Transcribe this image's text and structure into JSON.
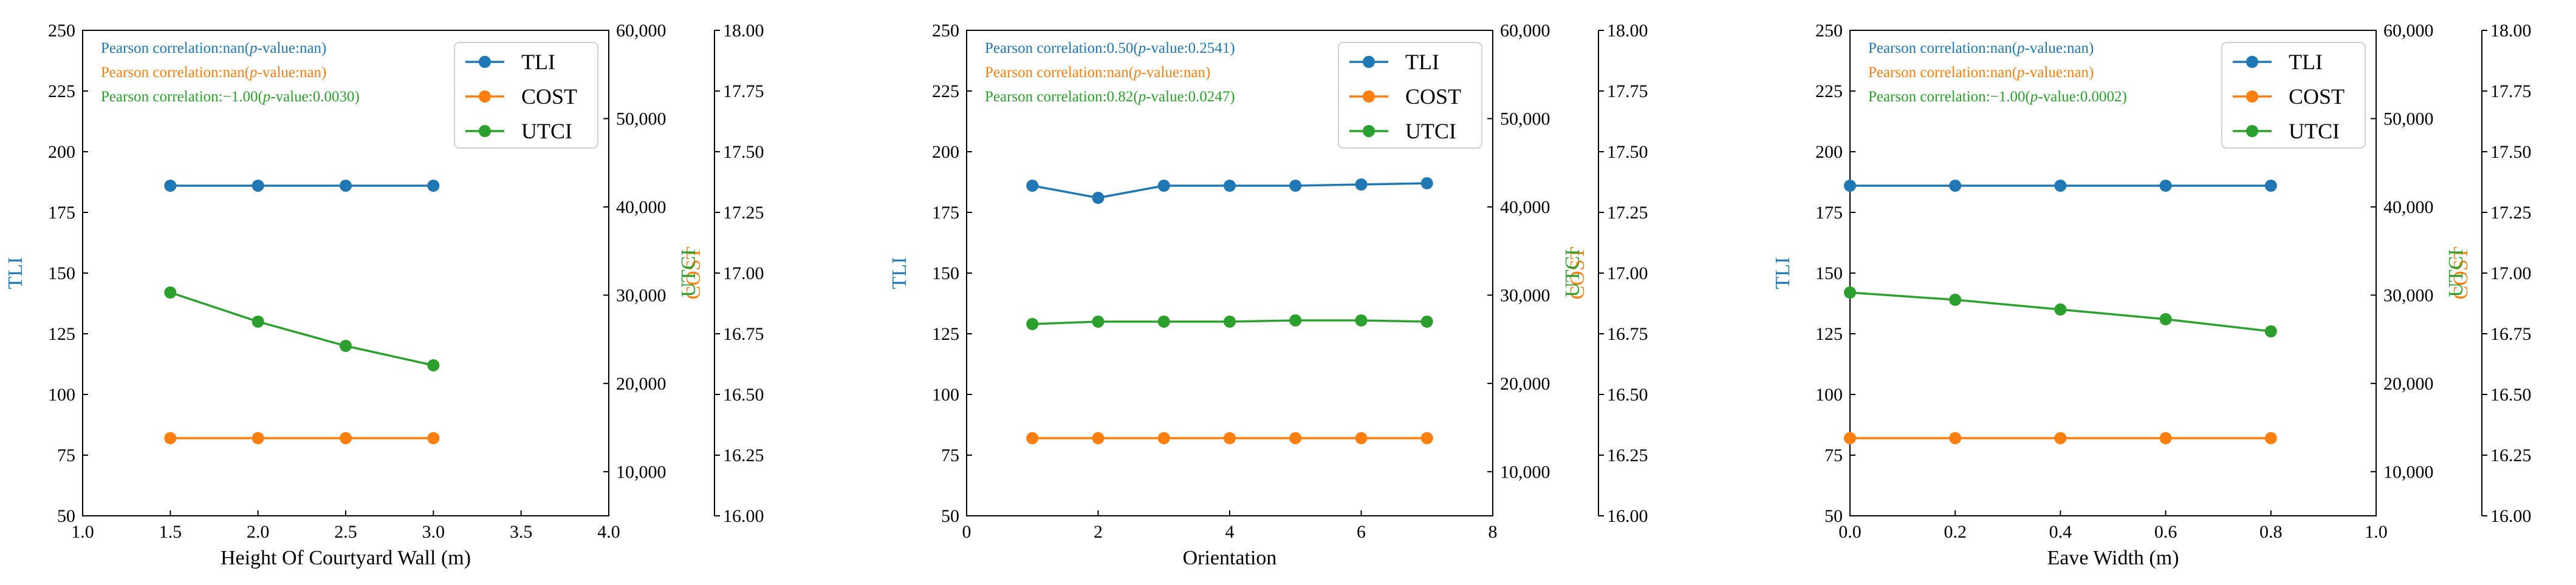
{
  "colors": {
    "tli": "#1f77b4",
    "cost": "#ff7f0e",
    "utci": "#2ca02c",
    "axis": "#000000"
  },
  "legend_labels": [
    "TLI",
    "COST",
    "UTCI"
  ],
  "chart_data": [
    {
      "type": "line",
      "xlabel": "Height Of Courtyard Wall (m)",
      "xlim": [
        1.0,
        4.0
      ],
      "xticks": [
        1.0,
        1.5,
        2.0,
        2.5,
        3.0,
        3.5,
        4.0
      ],
      "xtick_labels": [
        "1.0",
        "1.5",
        "2.0",
        "2.5",
        "3.0",
        "3.5",
        "4.0"
      ],
      "ylabel_left": "TLI",
      "ylim_left": [
        50,
        250
      ],
      "yticks_left": [
        "50",
        "75",
        "100",
        "125",
        "150",
        "175",
        "200",
        "225",
        "250"
      ],
      "ylabel_cost": "COST",
      "ylim_cost": [
        5000,
        60000
      ],
      "yticks_cost": [
        "10,000",
        "20,000",
        "30,000",
        "40,000",
        "50,000",
        "60,000"
      ],
      "ylabel_utci": "UTCI",
      "ylim_utci": [
        16.0,
        18.0
      ],
      "yticks_utci": [
        "16.00",
        "16.25",
        "16.50",
        "16.75",
        "17.00",
        "17.25",
        "17.50",
        "17.75",
        "18.00"
      ],
      "annotations": [
        {
          "prefix": "Pearson correlation:nan(",
          "p": "p",
          "suffix": "-value:nan)"
        },
        {
          "prefix": "Pearson correlation:nan(",
          "p": "p",
          "suffix": "-value:nan)"
        },
        {
          "prefix": "Pearson correlation:−1.00(",
          "p": "p",
          "suffix": "-value:0.0030)"
        }
      ],
      "series": [
        {
          "name": "TLI",
          "axis": "left",
          "x": [
            1.5,
            2.0,
            2.5,
            3.0
          ],
          "values": [
            186,
            186,
            186,
            186
          ]
        },
        {
          "name": "COST",
          "axis": "cost",
          "x": [
            1.5,
            2.0,
            2.5,
            3.0
          ],
          "values": [
            13800,
            13800,
            13800,
            13800
          ]
        },
        {
          "name": "UTCI",
          "axis": "utci",
          "x": [
            1.5,
            2.0,
            2.5,
            3.0
          ],
          "values": [
            16.92,
            16.8,
            16.7,
            16.62
          ]
        }
      ]
    },
    {
      "type": "line",
      "xlabel": "Orientation",
      "xlim": [
        0,
        8
      ],
      "xticks": [
        0,
        2,
        4,
        6,
        8
      ],
      "xtick_labels": [
        "0",
        "2",
        "4",
        "6",
        "8"
      ],
      "ylabel_left": "TLI",
      "ylim_left": [
        50,
        250
      ],
      "yticks_left": [
        "50",
        "75",
        "100",
        "125",
        "150",
        "175",
        "200",
        "225",
        "250"
      ],
      "ylabel_cost": "COST",
      "ylim_cost": [
        5000,
        60000
      ],
      "yticks_cost": [
        "10,000",
        "20,000",
        "30,000",
        "40,000",
        "50,000",
        "60,000"
      ],
      "ylabel_utci": "UTCI",
      "ylim_utci": [
        16.0,
        18.0
      ],
      "yticks_utci": [
        "16.00",
        "16.25",
        "16.50",
        "16.75",
        "17.00",
        "17.25",
        "17.50",
        "17.75",
        "18.00"
      ],
      "annotations": [
        {
          "prefix": "Pearson correlation:0.50(",
          "p": "p",
          "suffix": "-value:0.2541)"
        },
        {
          "prefix": "Pearson correlation:nan(",
          "p": "p",
          "suffix": "-value:nan)"
        },
        {
          "prefix": "Pearson correlation:0.82(",
          "p": "p",
          "suffix": "-value:0.0247)"
        }
      ],
      "series": [
        {
          "name": "TLI",
          "axis": "left",
          "x": [
            1,
            2,
            3,
            4,
            5,
            6,
            7
          ],
          "values": [
            186,
            181,
            186,
            186,
            186,
            186.5,
            187
          ]
        },
        {
          "name": "COST",
          "axis": "cost",
          "x": [
            1,
            2,
            3,
            4,
            5,
            6,
            7
          ],
          "values": [
            13800,
            13800,
            13800,
            13800,
            13800,
            13800,
            13800
          ]
        },
        {
          "name": "UTCI",
          "axis": "utci",
          "x": [
            1,
            2,
            3,
            4,
            5,
            6,
            7
          ],
          "values": [
            16.79,
            16.8,
            16.8,
            16.8,
            16.805,
            16.805,
            16.8
          ]
        }
      ]
    },
    {
      "type": "line",
      "xlabel": "Eave Width (m)",
      "xlim": [
        0.0,
        1.0
      ],
      "xticks": [
        0.0,
        0.2,
        0.4,
        0.6,
        0.8,
        1.0
      ],
      "xtick_labels": [
        "0.0",
        "0.2",
        "0.4",
        "0.6",
        "0.8",
        "1.0"
      ],
      "ylabel_left": "TLI",
      "ylim_left": [
        50,
        250
      ],
      "yticks_left": [
        "50",
        "75",
        "100",
        "125",
        "150",
        "175",
        "200",
        "225",
        "250"
      ],
      "ylabel_cost": "COST",
      "ylim_cost": [
        5000,
        60000
      ],
      "yticks_cost": [
        "10,000",
        "20,000",
        "30,000",
        "40,000",
        "50,000",
        "60,000"
      ],
      "ylabel_utci": "UTCI",
      "ylim_utci": [
        16.0,
        18.0
      ],
      "yticks_utci": [
        "16.00",
        "16.25",
        "16.50",
        "16.75",
        "17.00",
        "17.25",
        "17.50",
        "17.75",
        "18.00"
      ],
      "annotations": [
        {
          "prefix": "Pearson correlation:nan(",
          "p": "p",
          "suffix": "-value:nan)"
        },
        {
          "prefix": "Pearson correlation:nan(",
          "p": "p",
          "suffix": "-value:nan)"
        },
        {
          "prefix": "Pearson correlation:−1.00(",
          "p": "p",
          "suffix": "-value:0.0002)"
        }
      ],
      "series": [
        {
          "name": "TLI",
          "axis": "left",
          "x": [
            0.0,
            0.2,
            0.4,
            0.6,
            0.8
          ],
          "values": [
            186,
            186,
            186,
            186,
            186
          ]
        },
        {
          "name": "COST",
          "axis": "cost",
          "x": [
            0.0,
            0.2,
            0.4,
            0.6,
            0.8
          ],
          "values": [
            13800,
            13800,
            13800,
            13800,
            13800
          ]
        },
        {
          "name": "UTCI",
          "axis": "utci",
          "x": [
            0.0,
            0.2,
            0.4,
            0.6,
            0.8
          ],
          "values": [
            16.92,
            16.89,
            16.85,
            16.81,
            16.76
          ]
        }
      ]
    }
  ]
}
